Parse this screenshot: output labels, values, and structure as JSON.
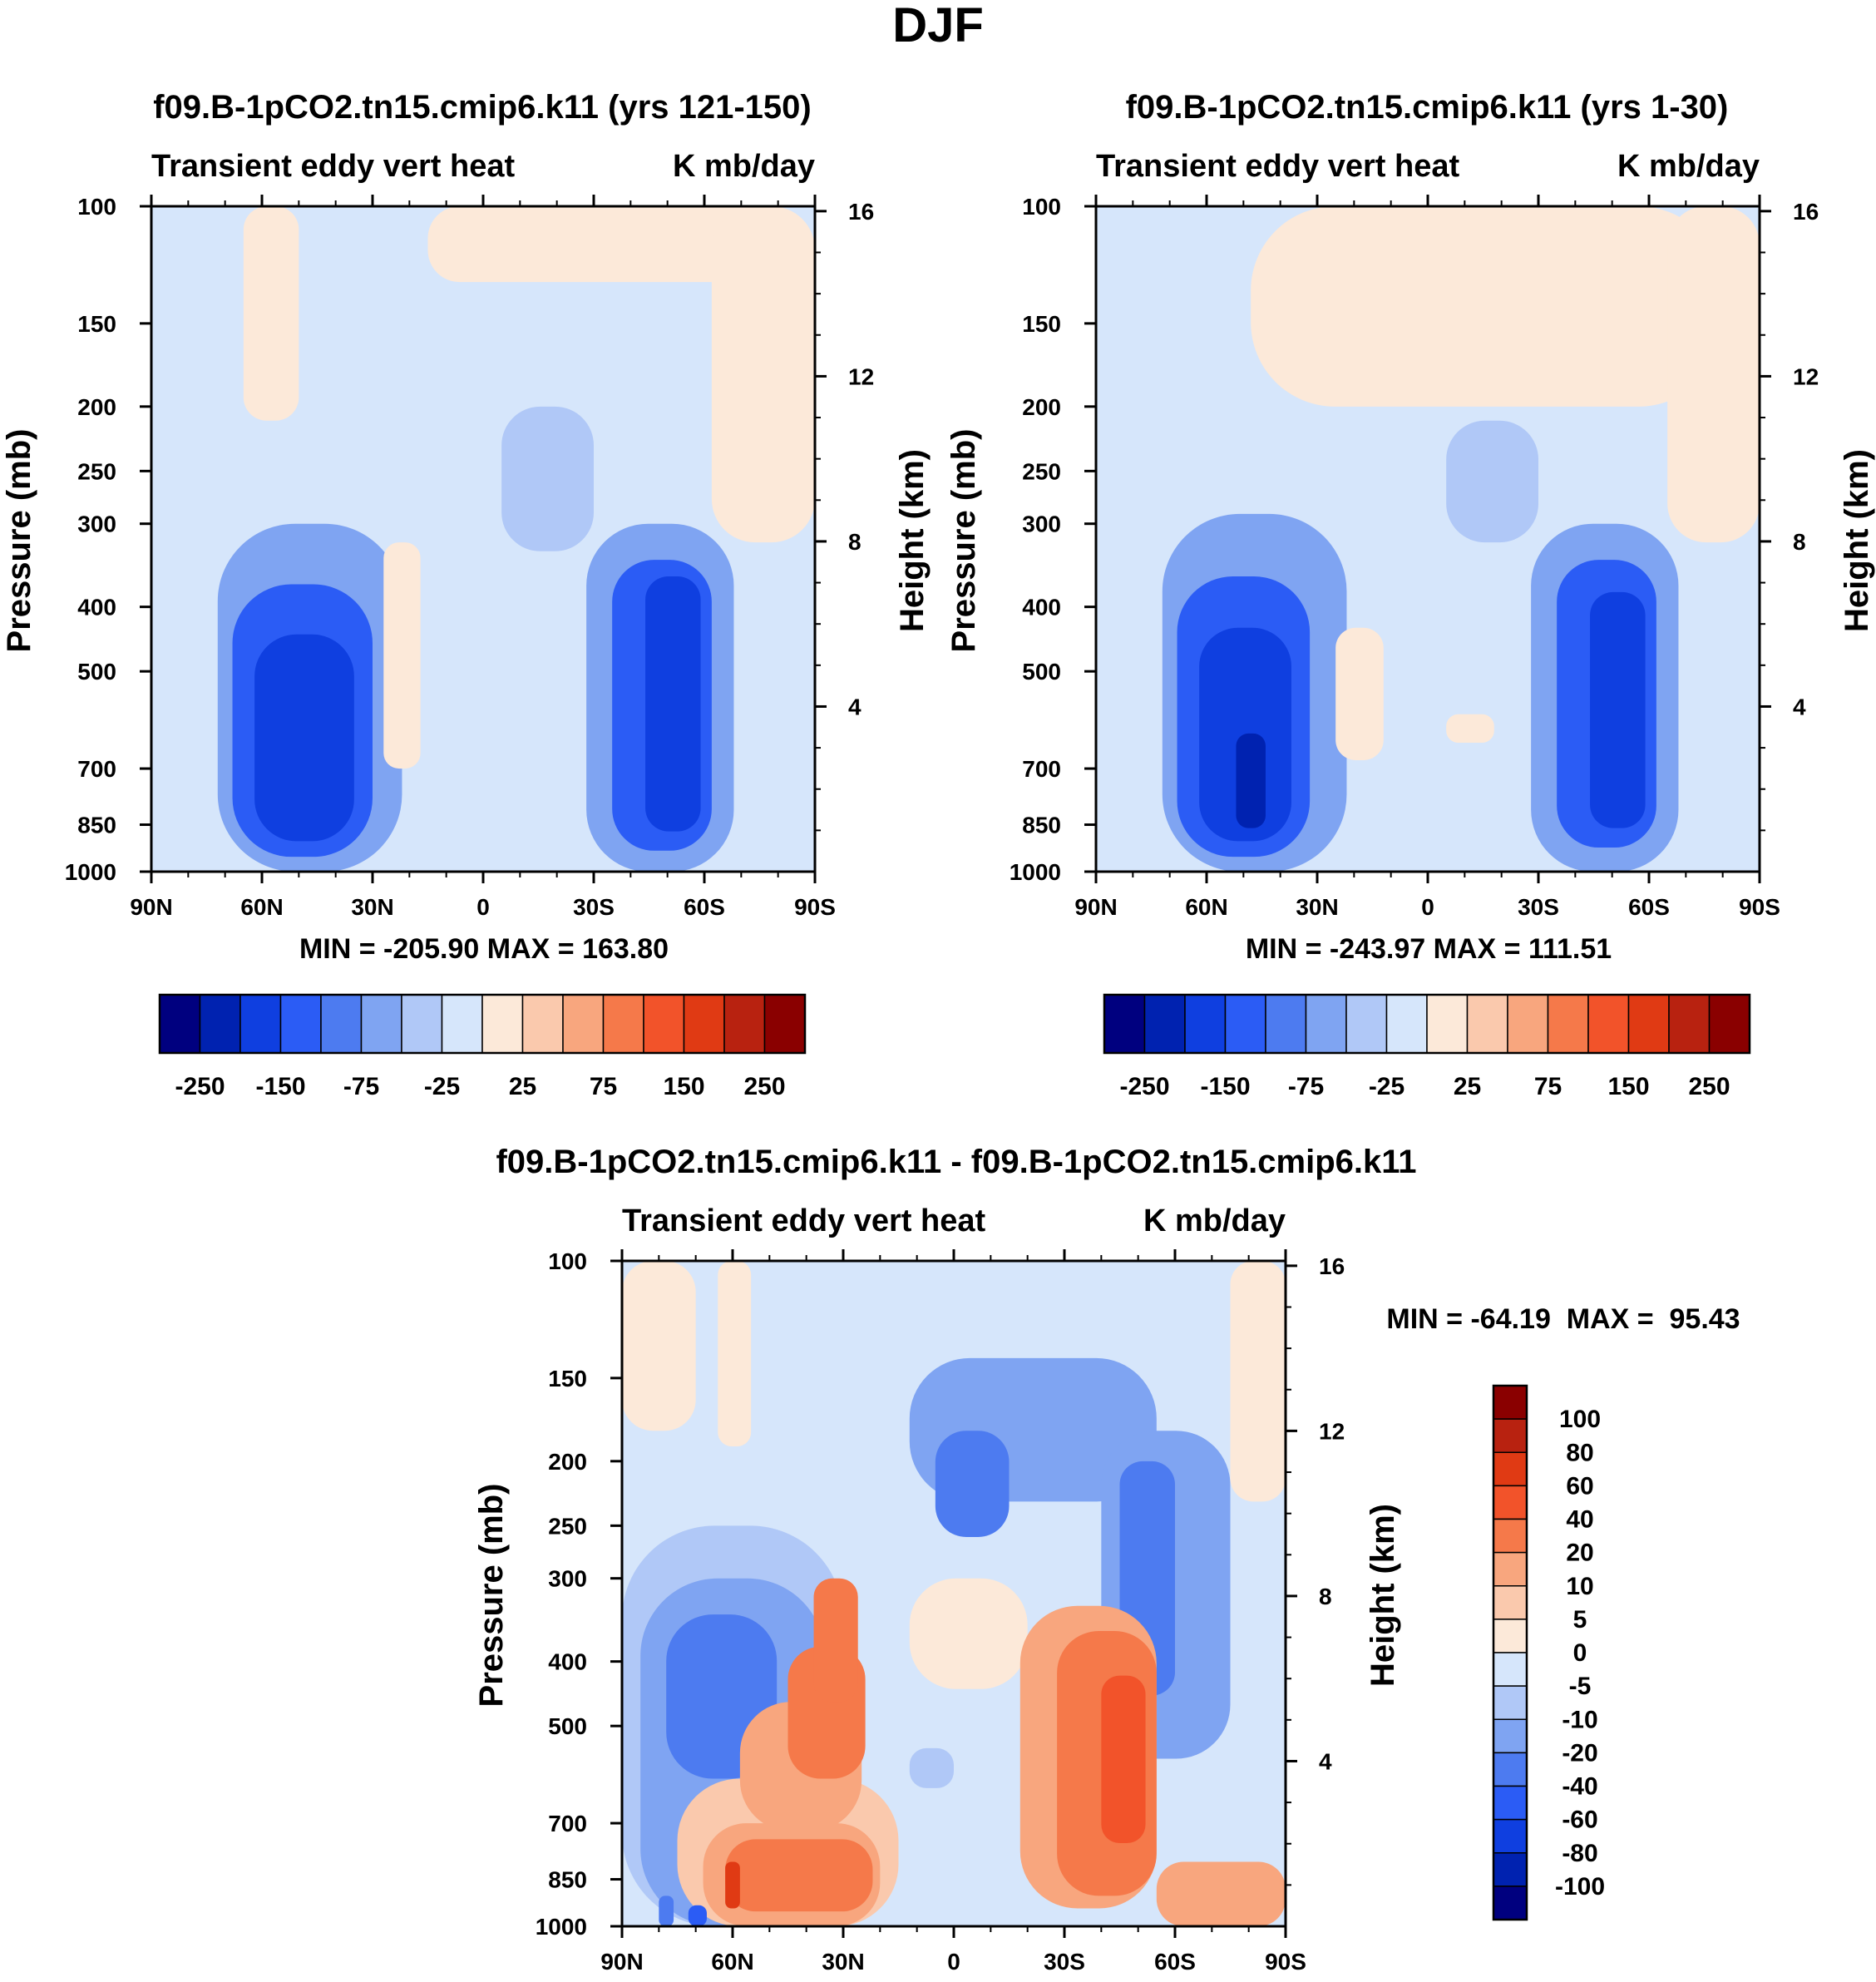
{
  "figure_title": "DJF",
  "chart_data": [
    {
      "type": "heatmap",
      "id": "left",
      "title": "f09.B-1pCO2.tn15.cmip6.k11 (yrs 121-150)",
      "subtitle_left": "Transient eddy vert heat",
      "subtitle_right": "K mb/day",
      "ylabel": "Pressure (mb)",
      "ylabel_right": "Height (km)",
      "x_ticks": [
        "90N",
        "60N",
        "30N",
        "0",
        "30S",
        "60S",
        "90S"
      ],
      "x_tick_values": [
        90,
        60,
        30,
        0,
        -30,
        -60,
        -90
      ],
      "xlim": [
        90,
        -90
      ],
      "y_ticks": [
        100,
        150,
        200,
        250,
        300,
        400,
        500,
        700,
        850,
        1000
      ],
      "ylim": [
        1000,
        100
      ],
      "height_ticks": [
        4,
        8,
        12,
        16
      ],
      "stats_text": "MIN = -205.90  MAX = 163.80",
      "min": -205.9,
      "max": 163.8,
      "colorbar_labels": [
        "-250",
        "-150",
        "-75",
        "-25",
        "25",
        "75",
        "150",
        "250"
      ],
      "colorbar_levels": [
        -300,
        -250,
        -200,
        -150,
        -100,
        -75,
        -50,
        -25,
        0,
        25,
        50,
        75,
        100,
        150,
        200,
        250,
        300
      ],
      "regions": [
        {
          "lat": [
            90,
            -90
          ],
          "p": [
            1000,
            100
          ],
          "value": -10
        },
        {
          "lat": [
            72,
            22
          ],
          "p": [
            1000,
            300
          ],
          "value": -60
        },
        {
          "lat": [
            68,
            30
          ],
          "p": [
            950,
            370
          ],
          "value": -120
        },
        {
          "lat": [
            62,
            35
          ],
          "p": [
            900,
            440
          ],
          "value": -180
        },
        {
          "lat": [
            -28,
            -68
          ],
          "p": [
            1000,
            300
          ],
          "value": -60
        },
        {
          "lat": [
            -35,
            -62
          ],
          "p": [
            930,
            340
          ],
          "value": -110
        },
        {
          "lat": [
            -44,
            -59
          ],
          "p": [
            870,
            360
          ],
          "value": -180
        },
        {
          "lat": [
            -5,
            -30
          ],
          "p": [
            330,
            200
          ],
          "value": -40
        },
        {
          "lat": [
            65,
            50
          ],
          "p": [
            210,
            100
          ],
          "value": 10
        },
        {
          "lat": [
            15,
            -80
          ],
          "p": [
            130,
            100
          ],
          "value": 10
        },
        {
          "lat": [
            -62,
            -90
          ],
          "p": [
            320,
            100
          ],
          "value": 10
        },
        {
          "lat": [
            27,
            17
          ],
          "p": [
            700,
            320
          ],
          "value": 10
        }
      ]
    },
    {
      "type": "heatmap",
      "id": "right",
      "title": "f09.B-1pCO2.tn15.cmip6.k11 (yrs 1-30)",
      "subtitle_left": "Transient eddy vert heat",
      "subtitle_right": "K mb/day",
      "ylabel": "Pressure (mb)",
      "ylabel_right": "Height (km)",
      "x_ticks": [
        "90N",
        "60N",
        "30N",
        "0",
        "30S",
        "60S",
        "90S"
      ],
      "x_tick_values": [
        90,
        60,
        30,
        0,
        -30,
        -60,
        -90
      ],
      "xlim": [
        90,
        -90
      ],
      "y_ticks": [
        100,
        150,
        200,
        250,
        300,
        400,
        500,
        700,
        850,
        1000
      ],
      "ylim": [
        1000,
        100
      ],
      "height_ticks": [
        4,
        8,
        12,
        16
      ],
      "stats_text": "MIN = -243.97  MAX = 111.51",
      "min": -243.97,
      "max": 111.51,
      "colorbar_labels": [
        "-250",
        "-150",
        "-75",
        "-25",
        "25",
        "75",
        "150",
        "250"
      ],
      "colorbar_levels": [
        -300,
        -250,
        -200,
        -150,
        -100,
        -75,
        -50,
        -25,
        0,
        25,
        50,
        75,
        100,
        150,
        200,
        250,
        300
      ],
      "regions": [
        {
          "lat": [
            90,
            -90
          ],
          "p": [
            1000,
            100
          ],
          "value": -10
        },
        {
          "lat": [
            72,
            22
          ],
          "p": [
            1000,
            290
          ],
          "value": -60
        },
        {
          "lat": [
            68,
            32
          ],
          "p": [
            950,
            360
          ],
          "value": -120
        },
        {
          "lat": [
            62,
            37
          ],
          "p": [
            900,
            430
          ],
          "value": -180
        },
        {
          "lat": [
            52,
            44
          ],
          "p": [
            860,
            620
          ],
          "value": -230
        },
        {
          "lat": [
            -28,
            -68
          ],
          "p": [
            1000,
            300
          ],
          "value": -60
        },
        {
          "lat": [
            -35,
            -62
          ],
          "p": [
            920,
            340
          ],
          "value": -110
        },
        {
          "lat": [
            -44,
            -59
          ],
          "p": [
            860,
            380
          ],
          "value": -180
        },
        {
          "lat": [
            -5,
            -30
          ],
          "p": [
            320,
            210
          ],
          "value": -40
        },
        {
          "lat": [
            48,
            -80
          ],
          "p": [
            200,
            100
          ],
          "value": 10
        },
        {
          "lat": [
            -65,
            -90
          ],
          "p": [
            320,
            100
          ],
          "value": 10
        },
        {
          "lat": [
            25,
            12
          ],
          "p": [
            680,
            430
          ],
          "value": 10
        },
        {
          "lat": [
            -5,
            -18
          ],
          "p": [
            640,
            580
          ],
          "value": 10
        }
      ]
    },
    {
      "type": "heatmap",
      "id": "diff",
      "title": "f09.B-1pCO2.tn15.cmip6.k11 - f09.B-1pCO2.tn15.cmip6.k11",
      "subtitle_left": "Transient eddy vert heat",
      "subtitle_right": "K mb/day",
      "ylabel": "Pressure (mb)",
      "ylabel_right": "Height (km)",
      "x_ticks": [
        "90N",
        "60N",
        "30N",
        "0",
        "30S",
        "60S",
        "90S"
      ],
      "x_tick_values": [
        90,
        60,
        30,
        0,
        -30,
        -60,
        -90
      ],
      "xlim": [
        90,
        -90
      ],
      "y_ticks": [
        100,
        150,
        200,
        250,
        300,
        400,
        500,
        700,
        850,
        1000
      ],
      "ylim": [
        1000,
        100
      ],
      "height_ticks": [
        4,
        8,
        12,
        16
      ],
      "stats_text": "MIN = -64.19  MAX =  95.43",
      "min": -64.19,
      "max": 95.43,
      "colorbar_labels": [
        "100",
        "80",
        "60",
        "40",
        "20",
        "10",
        "5",
        "0",
        "-5",
        "-10",
        "-20",
        "-40",
        "-60",
        "-80",
        "-100"
      ],
      "colorbar_levels": [
        -120,
        -100,
        -80,
        -60,
        -40,
        -20,
        -10,
        -5,
        0,
        5,
        10,
        20,
        40,
        60,
        80,
        100,
        120
      ],
      "regions": [
        {
          "lat": [
            90,
            -90
          ],
          "p": [
            1000,
            100
          ],
          "value": -2
        },
        {
          "lat": [
            90,
            30
          ],
          "p": [
            1000,
            250
          ],
          "value": -7
        },
        {
          "lat": [
            85,
            35
          ],
          "p": [
            1000,
            300
          ],
          "value": -15
        },
        {
          "lat": [
            78,
            48
          ],
          "p": [
            600,
            340
          ],
          "value": -30
        },
        {
          "lat": [
            12,
            -55
          ],
          "p": [
            230,
            140
          ],
          "value": -15
        },
        {
          "lat": [
            5,
            -15
          ],
          "p": [
            260,
            180
          ],
          "value": -30
        },
        {
          "lat": [
            -40,
            -75
          ],
          "p": [
            560,
            180
          ],
          "value": -12
        },
        {
          "lat": [
            -45,
            -60
          ],
          "p": [
            450,
            200
          ],
          "value": -25
        },
        {
          "lat": [
            75,
            15
          ],
          "p": [
            1000,
            600
          ],
          "value": 7
        },
        {
          "lat": [
            68,
            20
          ],
          "p": [
            1000,
            700
          ],
          "value": 15
        },
        {
          "lat": [
            62,
            22
          ],
          "p": [
            950,
            740
          ],
          "value": 30
        },
        {
          "lat": [
            58,
            25
          ],
          "p": [
            720,
            460
          ],
          "value": 15
        },
        {
          "lat": [
            45,
            24
          ],
          "p": [
            600,
            380
          ],
          "value": 30
        },
        {
          "lat": [
            38,
            26
          ],
          "p": [
            460,
            300
          ],
          "value": 20
        },
        {
          "lat": [
            12,
            -20
          ],
          "p": [
            440,
            300
          ],
          "value": 3
        },
        {
          "lat": [
            -18,
            -55
          ],
          "p": [
            940,
            330
          ],
          "value": 15
        },
        {
          "lat": [
            -28,
            -55
          ],
          "p": [
            900,
            360
          ],
          "value": 30
        },
        {
          "lat": [
            -40,
            -52
          ],
          "p": [
            750,
            420
          ],
          "value": 50
        },
        {
          "lat": [
            -55,
            -90
          ],
          "p": [
            1000,
            800
          ],
          "value": 10
        },
        {
          "lat": [
            90,
            70
          ],
          "p": [
            180,
            100
          ],
          "value": 2
        },
        {
          "lat": [
            64,
            55
          ],
          "p": [
            190,
            100
          ],
          "value": 2
        },
        {
          "lat": [
            -75,
            -90
          ],
          "p": [
            230,
            100
          ],
          "value": 2
        },
        {
          "lat": [
            12,
            0
          ],
          "p": [
            620,
            540
          ],
          "value": -10
        },
        {
          "lat": [
            80,
            76
          ],
          "p": [
            1000,
            900
          ],
          "value": -35
        },
        {
          "lat": [
            72,
            67
          ],
          "p": [
            1000,
            930
          ],
          "value": -60
        },
        {
          "lat": [
            62,
            58
          ],
          "p": [
            940,
            800
          ],
          "value": 60
        }
      ]
    }
  ],
  "palette": {
    "seq16": [
      "#00007F",
      "#0022B0",
      "#0F3FE0",
      "#2B5CF5",
      "#4D7BF0",
      "#7FA4F2",
      "#B0C8F7",
      "#D6E6FB",
      "#FCE9D9",
      "#FAC9AD",
      "#F8A67E",
      "#F5794A",
      "#F2532A",
      "#E03A14",
      "#B82210",
      "#8A0000"
    ]
  }
}
